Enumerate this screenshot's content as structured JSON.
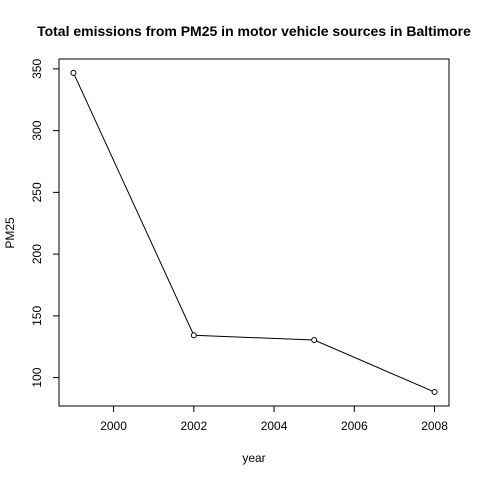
{
  "chart_data": {
    "type": "line",
    "title": "Total emissions from PM25 in motor vehicle sources in Baltimore",
    "xlabel": "year",
    "ylabel": "PM25",
    "x": [
      1999,
      2002,
      2005,
      2008
    ],
    "series": [
      {
        "values": [
          346.8,
          134.3,
          130.4,
          88.3
        ]
      }
    ],
    "xticks": [
      2000,
      2002,
      2004,
      2006,
      2008
    ],
    "yticks": [
      100,
      150,
      200,
      250,
      300,
      350
    ],
    "xlim": [
      1998.64,
      2008.36
    ],
    "ylim": [
      77.0,
      358.0
    ],
    "grid": false,
    "markers": "open-circle",
    "line_color": "#000000"
  }
}
